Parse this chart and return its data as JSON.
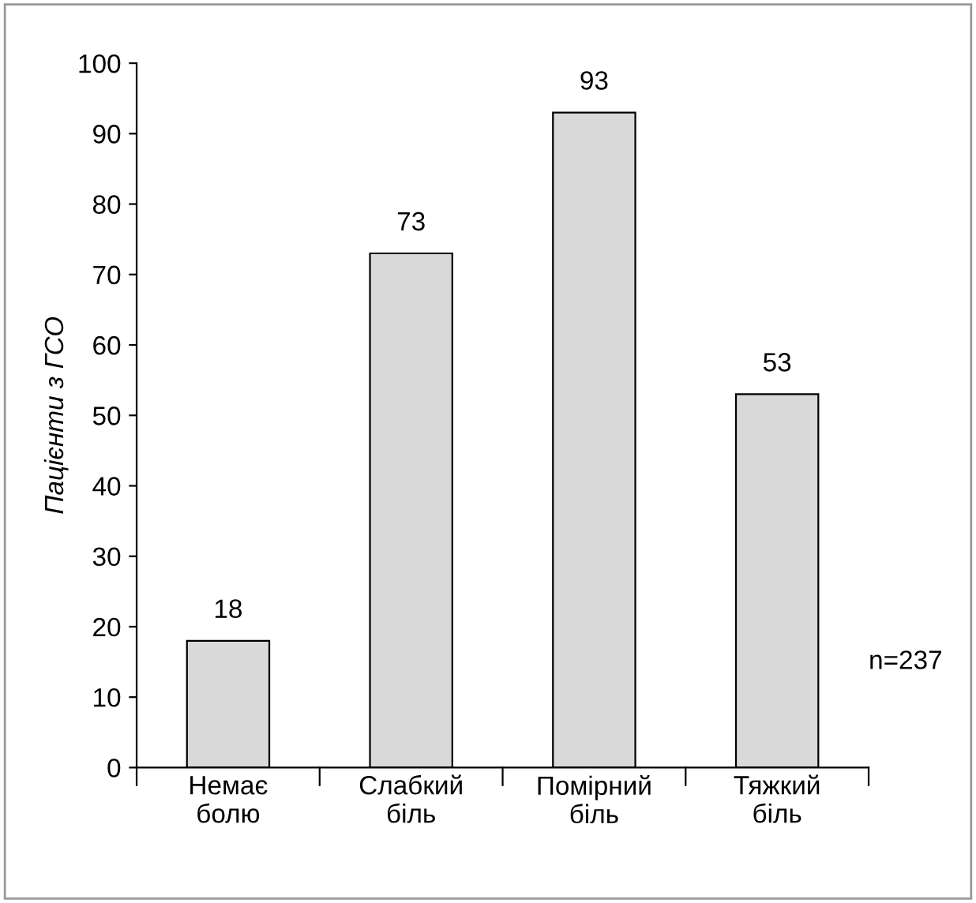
{
  "chart_data": {
    "type": "bar",
    "ylabel": "Пацієнти з ГСО",
    "categories": [
      "Немає\nболю",
      "Слабкий\nбіль",
      "Помірний\nбіль",
      "Тяжкий\nбіль"
    ],
    "values": [
      18,
      73,
      93,
      53
    ],
    "color": "#d9d9d9",
    "ylim": [
      0,
      100
    ],
    "yticks": [
      0,
      10,
      20,
      30,
      40,
      50,
      60,
      70,
      80,
      90,
      100
    ],
    "data_labels": true,
    "grid": false,
    "legend": false,
    "annotations": [
      "n=237"
    ]
  }
}
